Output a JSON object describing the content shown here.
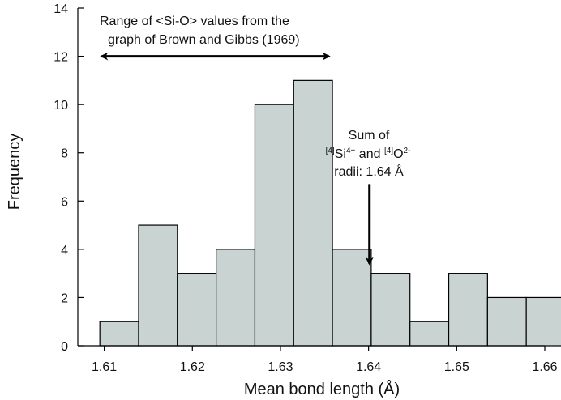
{
  "chart_data": {
    "type": "bar",
    "xlabel": "Mean bond length (Å)",
    "ylabel": "Frequency",
    "xlim": [
      1.607,
      1.66
    ],
    "ylim": [
      0,
      14
    ],
    "xticks": [
      1.61,
      1.62,
      1.63,
      1.64,
      1.65,
      1.66
    ],
    "xtick_labels": [
      "1.61",
      "1.62",
      "1.63",
      "1.64",
      "1.65",
      "1.66"
    ],
    "yticks": [
      0,
      2,
      4,
      6,
      8,
      10,
      12,
      14
    ],
    "ytick_labels": [
      "0",
      "2",
      "4",
      "6",
      "8",
      "10",
      "12",
      "14"
    ],
    "bin_width": 0.0044,
    "bins": [
      {
        "x": 1.6095,
        "value": 1
      },
      {
        "x": 1.6139,
        "value": 5
      },
      {
        "x": 1.6183,
        "value": 3
      },
      {
        "x": 1.6227,
        "value": 4
      },
      {
        "x": 1.6271,
        "value": 10
      },
      {
        "x": 1.6315,
        "value": 11
      },
      {
        "x": 1.6359,
        "value": 4
      },
      {
        "x": 1.6403,
        "value": 3
      },
      {
        "x": 1.6447,
        "value": 1
      },
      {
        "x": 1.6491,
        "value": 3
      },
      {
        "x": 1.6535,
        "value": 2
      },
      {
        "x": 1.6579,
        "value": 2
      }
    ],
    "bar_color": "#c8d3d2",
    "grid": false,
    "annotations": {
      "range": {
        "line1": "Range of <Si-O> values from the",
        "line2": "graph of Brown and Gibbs (1969)",
        "x_from": 1.6097,
        "x_to": 1.6355,
        "y": 12
      },
      "sum": {
        "line1": "Sum of",
        "pre1": "[4]",
        "si": "Si",
        "si_charge": "4+",
        "and": " and ",
        "pre2": "[4]",
        "o": "O",
        "o_charge": "2-",
        "line3": "radii: 1.64 Å",
        "arrow_x": 1.6401,
        "arrow_from_y": 6.7,
        "arrow_to_y": 3.4
      }
    }
  }
}
